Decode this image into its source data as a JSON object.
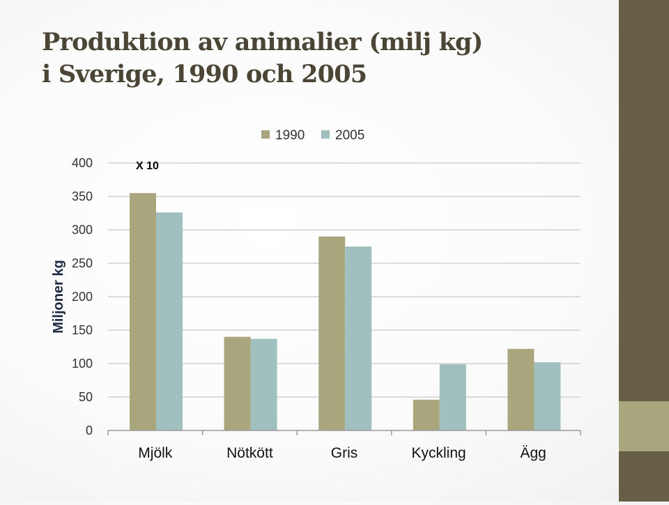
{
  "slide": {
    "title_line1": "Produktion av animalier (milj kg)",
    "title_line2": "i Sverige, 1990 och 2005",
    "accent_dark": "#675e47",
    "accent_light": "#a9a57c"
  },
  "chart_data": {
    "type": "bar",
    "categories": [
      "Mjölk",
      "Nötkött",
      "Gris",
      "Kyckling",
      "Ägg"
    ],
    "series": [
      {
        "name": "1990",
        "values": [
          355,
          140,
          290,
          46,
          122
        ],
        "color": "#a9a57c"
      },
      {
        "name": "2005",
        "values": [
          326,
          137,
          275,
          99,
          102
        ],
        "color": "#9fc0bf"
      }
    ],
    "ylabel": "Miljoner kg",
    "ylim": [
      0,
      400
    ],
    "yticks": [
      0,
      50,
      100,
      150,
      200,
      250,
      300,
      350,
      400
    ],
    "grid": true,
    "legend": "top-right",
    "annotation": "X 10"
  }
}
